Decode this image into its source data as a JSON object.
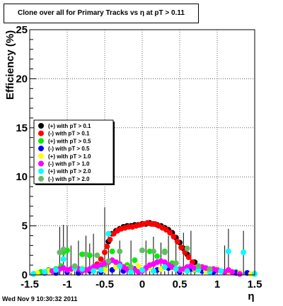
{
  "title": "Clone  over all for Primary Tracks vs    η at pT > 0.11",
  "timestamp": "Wed Nov  9 10:30:32 2011",
  "chart_data": {
    "type": "scatter",
    "xlabel": "η",
    "ylabel": "Efficiency (%)",
    "xlim": [
      -1.5,
      1.5
    ],
    "ylim": [
      0,
      25
    ],
    "xticks": [
      -1.5,
      -1,
      -0.5,
      0,
      0.5,
      1,
      1.5
    ],
    "xtick_labels": [
      "-1.5",
      "-1",
      "-0.5",
      "0",
      "0.5",
      "1",
      "1.5"
    ],
    "yticks": [
      0,
      5,
      10,
      15,
      20,
      25
    ],
    "ytick_labels": [
      "0",
      "5",
      "10",
      "15",
      "20",
      "25"
    ],
    "grid": true,
    "legend_position": "left",
    "series": [
      {
        "name": "(+) with pT > 0.1",
        "color": "#000000",
        "x": [
          -0.45,
          -0.4,
          -0.35,
          -0.3,
          -0.25,
          -0.2,
          -0.15,
          -0.1,
          -0.05,
          0,
          0.05,
          0.1,
          0.15,
          0.2,
          0.25,
          0.3,
          0.35,
          0.4,
          0.45,
          0.5,
          0.55,
          0.6,
          0.7,
          0.8,
          0.9
        ],
        "y": [
          3.4,
          4.2,
          4.5,
          4.7,
          4.9,
          5.0,
          5.0,
          5.1,
          5.1,
          5.2,
          5.2,
          5.3,
          5.2,
          5.1,
          5.0,
          4.8,
          4.6,
          4.3,
          3.8,
          3.3,
          2.7,
          2.1,
          1.3,
          0.8,
          0.5
        ]
      },
      {
        "name": "(-) with pT > 0.1",
        "color": "#ff0000",
        "x": [
          -0.6,
          -0.55,
          -0.5,
          -0.47,
          -0.43,
          -0.38,
          -0.33,
          -0.28,
          -0.23,
          -0.18,
          -0.13,
          -0.08,
          -0.03,
          0.02,
          0.07,
          0.12,
          0.17,
          0.22,
          0.27,
          0.32,
          0.37,
          0.42,
          0.47,
          0.52,
          0.57,
          0.62,
          0.67
        ],
        "y": [
          1.1,
          1.6,
          2.3,
          2.9,
          3.6,
          4.2,
          4.5,
          4.7,
          4.8,
          4.9,
          4.9,
          5.0,
          5.1,
          5.2,
          5.3,
          5.2,
          5.2,
          5.0,
          4.8,
          4.6,
          4.3,
          3.9,
          3.4,
          2.8,
          2.3,
          1.8,
          1.3
        ]
      },
      {
        "name": "(+) with pT > 0.5",
        "color": "#00ee00",
        "x": [
          -1.35,
          -1.25,
          -1.15,
          -1.08,
          -1.05,
          -1.0,
          -0.9,
          -0.8,
          -0.7,
          -0.6,
          -0.5,
          -0.4,
          -0.3,
          -0.2,
          -0.1,
          0,
          0.1,
          0.2,
          0.3,
          0.4,
          0.5,
          0.6,
          0.7,
          0.85,
          1.0,
          1.1,
          1.25,
          1.4
        ],
        "y": [
          0.3,
          0.5,
          0.6,
          0.9,
          2.3,
          2.5,
          0.7,
          2.1,
          2.0,
          0.8,
          0.9,
          2.4,
          1.1,
          1.0,
          1.5,
          2.5,
          2.4,
          1.9,
          2.4,
          1.2,
          0.6,
          0.8,
          0.5,
          0.4,
          0.5,
          0.3,
          0.3,
          0.2
        ]
      },
      {
        "name": "(-) with pT > 0.5",
        "color": "#0000ff",
        "x": [
          -1.45,
          -1.3,
          -1.15,
          -1.0,
          -0.85,
          -0.7,
          -0.55,
          -0.4,
          -0.25,
          -0.1,
          0.05,
          0.2,
          0.35,
          0.5,
          0.65,
          0.8,
          0.95,
          1.1,
          1.25,
          1.4,
          1.5
        ],
        "y": [
          0.1,
          0.2,
          0.2,
          0.3,
          0.2,
          0.4,
          0.3,
          0.5,
          0.4,
          0.6,
          0.7,
          0.5,
          0.7,
          0.3,
          0.6,
          0.4,
          0.3,
          0.3,
          0.2,
          0.2,
          0.1
        ]
      },
      {
        "name": "(+) with pT > 1.0",
        "color": "#ffff00",
        "x": [
          -1.4,
          -1.25,
          -1.1,
          -0.95,
          -0.8,
          -0.65,
          -0.5,
          -0.35,
          -0.2,
          -0.05,
          0.1,
          0.25,
          0.4,
          0.55,
          0.7,
          0.85,
          1.0,
          1.15,
          1.3,
          1.45
        ],
        "y": [
          0.2,
          0.4,
          0.6,
          0.5,
          0.7,
          0.6,
          0.5,
          0.8,
          0.7,
          0.9,
          0.7,
          0.6,
          0.8,
          0.5,
          0.6,
          0.4,
          0.6,
          0.3,
          0.2,
          0.1
        ]
      },
      {
        "name": "(-) with pT > 1.0",
        "color": "#ff00ff",
        "x": [
          -1.3,
          -1.2,
          -1.1,
          -1.05,
          -1.0,
          -0.95,
          -0.9,
          -0.85,
          -0.8,
          -0.75,
          -0.7,
          -0.65,
          -0.6,
          -0.55,
          -0.5,
          -0.45,
          -0.4,
          -0.35,
          -0.3,
          -0.25,
          -0.2,
          -0.15,
          -0.1,
          -0.05,
          0,
          0.05,
          0.1,
          0.15,
          0.2,
          0.25,
          0.3,
          0.35,
          0.4,
          0.45,
          0.5,
          0.55,
          0.6,
          0.65,
          0.7,
          0.75,
          0.8,
          0.85,
          0.9,
          0.95,
          1.0,
          1.05,
          1.1,
          1.15,
          1.2,
          1.3
        ],
        "y": [
          0.2,
          0.4,
          0.6,
          0.7,
          0.5,
          0.6,
          0.7,
          0.6,
          0.4,
          0.5,
          0.6,
          0.8,
          0.9,
          1.0,
          1.2,
          1.3,
          1.5,
          1.3,
          1.1,
          0.8,
          0.6,
          0.7,
          0.5,
          0.3,
          0.4,
          0.7,
          1.0,
          1.1,
          1.3,
          1.4,
          1.3,
          1.0,
          0.8,
          0.6,
          0.5,
          0.6,
          0.8,
          0.9,
          0.7,
          0.6,
          0.8,
          0.7,
          0.5,
          0.6,
          0.5,
          0.4,
          0.3,
          0.5,
          0.3,
          0.1
        ]
      },
      {
        "name": "(+) with pT > 2.0",
        "color": "#00ffff",
        "x": [
          -1.45,
          -1.3,
          -1.15,
          -1.05,
          -0.9,
          -0.8,
          -0.65,
          -0.55,
          -0.45,
          -0.3,
          -0.15,
          0,
          0.15,
          0.3,
          0.45,
          0.6,
          0.75,
          0.9,
          1.05,
          1.15,
          1.35,
          1.5
        ],
        "y": [
          0.1,
          0.3,
          0.5,
          1.6,
          0.7,
          0.6,
          0.4,
          0.5,
          4.2,
          0.9,
          0.3,
          0.5,
          0.4,
          0.8,
          0.6,
          0.4,
          0.5,
          0.3,
          0.4,
          2.4,
          2.3,
          0.1
        ]
      },
      {
        "name": "(-) with pT > 2.0",
        "color": "#66bb66",
        "x": [
          -1.1,
          -1.05,
          -0.9,
          -0.75,
          -0.6,
          -0.45,
          -0.3,
          -0.15,
          0,
          0.15,
          0.3,
          0.45,
          0.6,
          0.75,
          0.9
        ],
        "y": [
          2.3,
          2.6,
          0.9,
          2.1,
          2.0,
          1.4,
          2.4,
          0.8,
          2.5,
          2.4,
          2.3,
          1.2,
          2.7,
          0.9,
          0.6
        ]
      }
    ],
    "error_bars": {
      "x": [
        -1.1,
        -1.05,
        -1.0,
        -0.95,
        -0.85,
        -0.75,
        -0.7,
        -0.65,
        -0.5,
        -0.45,
        -0.3,
        -0.15,
        0.05,
        0.15,
        0.25,
        0.35,
        0.45,
        0.55,
        0.65,
        1.1,
        1.15,
        1.35
      ],
      "top": [
        4.9,
        5.1,
        5.0,
        3.0,
        3.5,
        4.0,
        3.2,
        4.2,
        6.9,
        4.0,
        3.5,
        3.5,
        3.5,
        3.9,
        3.3,
        4.0,
        3.8,
        4.3,
        4.5,
        3.0,
        4.7,
        4.5
      ]
    }
  }
}
